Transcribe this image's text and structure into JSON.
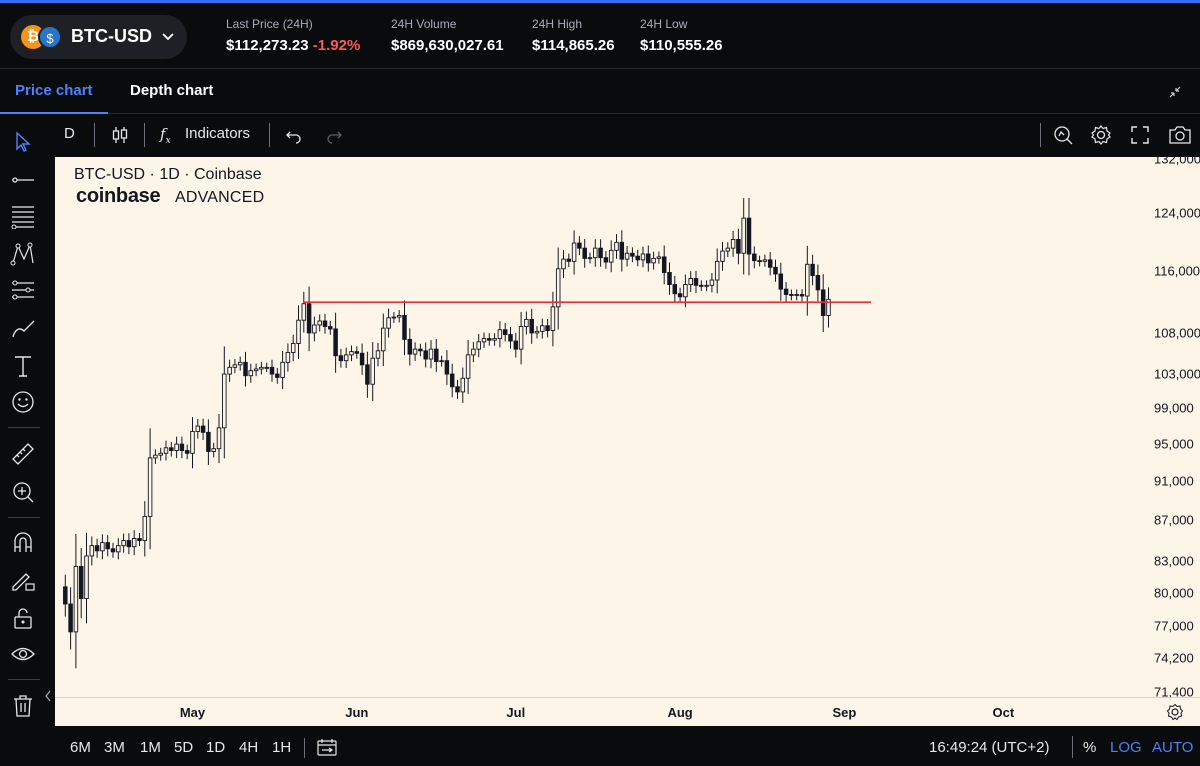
{
  "header": {
    "pair": "BTC-USD",
    "coin_base_symbol": "₿",
    "coin_quote_symbol": "$",
    "stats": [
      {
        "label": "Last Price (24H)",
        "value": "$112,273.23",
        "change": "-1.92%"
      },
      {
        "label": "24H Volume",
        "value": "$869,630,027.61"
      },
      {
        "label": "24H High",
        "value": "$114,865.26"
      },
      {
        "label": "24H Low",
        "value": "$110,555.26"
      }
    ]
  },
  "tabs": [
    {
      "label": "Price chart",
      "active": true
    },
    {
      "label": "Depth chart",
      "active": false
    }
  ],
  "toolbar": {
    "interval": "D",
    "indicators_label": "Indicators",
    "fx_label": "f",
    "fx_sub": "x"
  },
  "left_rail_icons": [
    "cursor-icon",
    "trend-line-icon",
    "fib-retracement-icon",
    "pattern-icon",
    "prediction-icon",
    "brush-icon",
    "text-icon",
    "emoji-icon",
    "ruler-icon",
    "zoom-in-icon",
    "magnet-icon",
    "lock-drawing-icon",
    "lock-icon",
    "visibility-icon",
    "trash-icon"
  ],
  "chart": {
    "title": "BTC-USD · 1D · Coinbase",
    "logo_text": "coinbase",
    "logo_suffix": "ADVANCED",
    "colors": {
      "background": "#fdf5e7",
      "candle": "#131722",
      "hline": "#e8303e",
      "accent": "#4c82fb",
      "negative": "#ff5a5a"
    }
  },
  "chart_data": {
    "type": "candlestick",
    "title": "BTC-USD · 1D · Coinbase",
    "x_ticks": [
      "May",
      "Jun",
      "Jul",
      "Aug",
      "Sep",
      "Oct"
    ],
    "y_ticks": [
      "132,000",
      "124,000",
      "116,000",
      "108,000",
      "103,000",
      "99,000",
      "95,000",
      "91,000",
      "87,000",
      "83,000",
      "80,000",
      "77,000",
      "74,200",
      "71,400"
    ],
    "y_scale": "log",
    "ylim": [
      70800,
      132000
    ],
    "horizontal_line": {
      "from": "2025-05-22",
      "to": "2025-09-06",
      "value": 111900
    },
    "x_range": [
      "2025-04-06",
      "2025-10-22"
    ],
    "dates": {
      "start": "2025-04-07",
      "end": "2025-08-25"
    },
    "closes": [
      79000,
      76500,
      82500,
      79500,
      83500,
      84500,
      84000,
      84800,
      84200,
      83900,
      84500,
      85000,
      84400,
      85200,
      85000,
      87400,
      93500,
      93800,
      94000,
      94600,
      94300,
      95000,
      94300,
      94000,
      96400,
      97000,
      96300,
      94200,
      94500,
      96800,
      103000,
      103800,
      104100,
      104400,
      102800,
      103400,
      103600,
      103800,
      103800,
      103000,
      102600,
      104400,
      105600,
      106700,
      109600,
      111700,
      108000,
      109000,
      109500,
      108800,
      108500,
      105200,
      104600,
      105300,
      105700,
      105500,
      104100,
      101800,
      104900,
      105800,
      108600,
      109900,
      110000,
      110200,
      107200,
      105400,
      106000,
      105800,
      104800,
      106000,
      104500,
      104600,
      103000,
      101500,
      100900,
      102500,
      105300,
      106000,
      106900,
      107300,
      107100,
      107300,
      108400,
      107800,
      107000,
      106000,
      108800,
      109700,
      108000,
      108200,
      108900,
      108300,
      111300,
      116300,
      117600,
      117300,
      119800,
      119100,
      117700,
      117800,
      119100,
      117800,
      117200,
      118800,
      119900,
      117600,
      118400,
      118000,
      117500,
      118300,
      117100,
      117700,
      117900,
      115800,
      114200,
      113000,
      112600,
      114200,
      115000,
      114100,
      114000,
      114100,
      114800,
      117300,
      118700,
      119100,
      120300,
      118400,
      123300,
      118300,
      117400,
      117300,
      117500,
      116500,
      115600,
      113600,
      112900,
      112800,
      112900,
      112700,
      116900,
      115400,
      113500,
      110200,
      112273
    ],
    "series": [
      {
        "name": "BTC-USD",
        "values_ref": "closes"
      }
    ]
  },
  "xaxis_labels": [
    "May",
    "Jun",
    "Jul",
    "Aug",
    "Sep",
    "Oct"
  ],
  "bottom": {
    "timeframes": [
      "6M",
      "3M",
      "1M",
      "5D",
      "1D",
      "4H",
      "1H"
    ],
    "clock": "16:49:24 (UTC+2)",
    "percent": "%",
    "log": "LOG",
    "auto": "AUTO"
  }
}
